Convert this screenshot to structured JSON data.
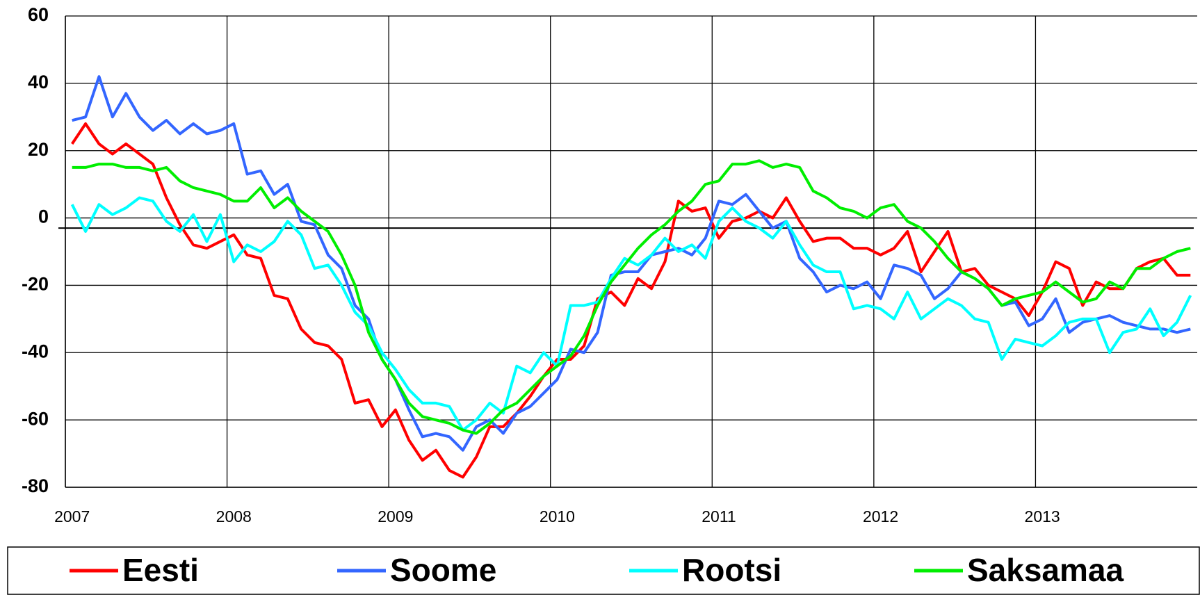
{
  "chart_data": {
    "type": "line",
    "categories": [
      "2007",
      null,
      null,
      null,
      null,
      null,
      null,
      null,
      null,
      null,
      null,
      null,
      "2008",
      null,
      null,
      null,
      null,
      null,
      null,
      null,
      null,
      null,
      null,
      null,
      "2009",
      null,
      null,
      null,
      null,
      null,
      null,
      null,
      null,
      null,
      null,
      null,
      "2010",
      null,
      null,
      null,
      null,
      null,
      null,
      null,
      null,
      null,
      null,
      null,
      "2011",
      null,
      null,
      null,
      null,
      null,
      null,
      null,
      null,
      null,
      null,
      null,
      "2012",
      null,
      null,
      null,
      null,
      null,
      null,
      null,
      null,
      null,
      null,
      null,
      "2013",
      null,
      null,
      null,
      null,
      null,
      null,
      null,
      null,
      null,
      null,
      null
    ],
    "series": [
      {
        "name": "Eesti",
        "color": "#ff0000",
        "values": [
          22,
          28,
          22,
          19,
          22,
          19,
          16,
          6,
          -2,
          -8,
          -9,
          -7,
          -5,
          -11,
          -12,
          -23,
          -24,
          -33,
          -37,
          -38,
          -42,
          -55,
          -54,
          -62,
          -57,
          -66,
          -72,
          -69,
          -75,
          -77,
          -71,
          -62,
          -62,
          -58,
          -53,
          -47,
          -42,
          -42,
          -38,
          -24,
          -22,
          -26,
          -18,
          -21,
          -13,
          5,
          2,
          3,
          -6,
          -1,
          0,
          2,
          0,
          6,
          -1,
          -7,
          -6,
          -6,
          -9,
          -9,
          -11,
          -9,
          -4,
          -16,
          -10,
          -4,
          -16,
          -15,
          -20,
          -22,
          -24,
          -29,
          -22,
          -13,
          -15,
          -26,
          -19,
          -21,
          -21,
          -15,
          -13,
          -12,
          -17,
          -17
        ]
      },
      {
        "name": "Soome",
        "color": "#3366ff",
        "values": [
          29,
          30,
          42,
          30,
          37,
          30,
          26,
          29,
          25,
          28,
          25,
          26,
          28,
          13,
          14,
          7,
          10,
          -1,
          -2,
          -11,
          -15,
          -26,
          -30,
          -42,
          -48,
          -57,
          -65,
          -64,
          -65,
          -69,
          -62,
          -60,
          -64,
          -58,
          -56,
          -52,
          -48,
          -39,
          -40,
          -34,
          -17,
          -16,
          -16,
          -11,
          -10,
          -9,
          -11,
          -6,
          5,
          4,
          7,
          2,
          -3,
          -1,
          -12,
          -16,
          -22,
          -20,
          -21,
          -19,
          -24,
          -14,
          -15,
          -17,
          -24,
          -21,
          -16,
          -18,
          -21,
          -26,
          -25,
          -32,
          -30,
          -24,
          -34,
          -31,
          -30,
          -29,
          -31,
          -32,
          -33,
          -33,
          -34,
          -33
        ]
      },
      {
        "name": "Rootsi",
        "color": "#00ffff",
        "values": [
          4,
          -4,
          4,
          1,
          3,
          6,
          5,
          -1,
          -4,
          1,
          -7,
          1,
          -13,
          -8,
          -10,
          -7,
          -1,
          -5,
          -15,
          -14,
          -20,
          -28,
          -32,
          -40,
          -45,
          -51,
          -55,
          -55,
          -56,
          -63,
          -60,
          -55,
          -58,
          -44,
          -46,
          -40,
          -44,
          -26,
          -26,
          -25,
          -18,
          -12,
          -14,
          -11,
          -6,
          -10,
          -8,
          -12,
          -1,
          3,
          -1,
          -3,
          -6,
          -1,
          -8,
          -14,
          -16,
          -16,
          -27,
          -26,
          -27,
          -30,
          -22,
          -30,
          -27,
          -24,
          -26,
          -30,
          -31,
          -42,
          -36,
          -37,
          -38,
          -35,
          -31,
          -30,
          -30,
          -40,
          -34,
          -33,
          -27,
          -35,
          -31,
          -23
        ]
      },
      {
        "name": "Saksamaa",
        "color": "#00ee00",
        "values": [
          15,
          15,
          16,
          16,
          15,
          15,
          14,
          15,
          11,
          9,
          8,
          7,
          5,
          5,
          9,
          3,
          6,
          2,
          -1,
          -4,
          -11,
          -20,
          -34,
          -42,
          -48,
          -55,
          -59,
          -60,
          -61,
          -63,
          -64,
          -61,
          -57,
          -55,
          -51,
          -47,
          -44,
          -41,
          -35,
          -26,
          -19,
          -14,
          -9,
          -5,
          -2,
          2,
          5,
          10,
          11,
          16,
          16,
          17,
          15,
          16,
          15,
          8,
          6,
          3,
          2,
          0,
          3,
          4,
          -1,
          -3,
          -7,
          -12,
          -16,
          -18,
          -21,
          -26,
          -24,
          -23,
          -22,
          -19,
          -22,
          -25,
          -24,
          -19,
          -21,
          -15,
          -15,
          -12,
          -10,
          -9
        ]
      }
    ],
    "ylim": [
      -80,
      60
    ],
    "yticks": [
      -80,
      -60,
      -40,
      -20,
      0,
      20,
      40,
      60
    ],
    "grid": true,
    "reference_line": -3,
    "legend": "bottom"
  }
}
